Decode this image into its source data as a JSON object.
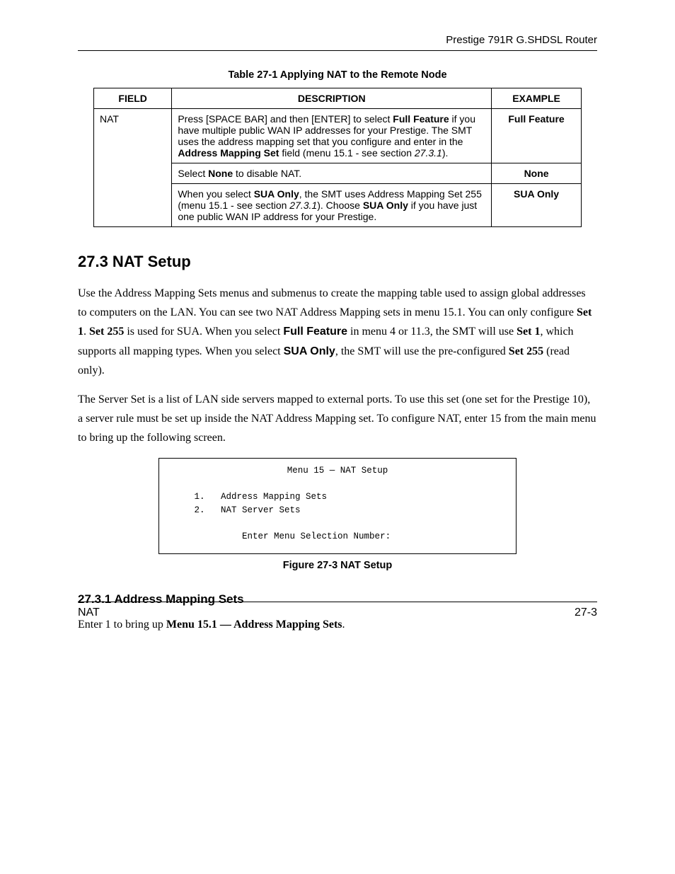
{
  "header": {
    "product": "Prestige 791R G.SHDSL Router"
  },
  "table": {
    "caption": "Table 27-1 Applying NAT to the Remote Node",
    "headers": {
      "field": "FIELD",
      "description": "DESCRIPTION",
      "example": "EXAMPLE"
    },
    "field_label": "NAT",
    "rows": [
      {
        "desc_parts": {
          "a": "Press [SPACE BAR] and then [ENTER] to select ",
          "b": "Full Feature",
          "c": " if you have multiple public WAN IP addresses for your Prestige.  The SMT uses the address mapping set that you configure and enter in the ",
          "d": "Address Mapping Set",
          "e": " field (menu 15.1 - see section ",
          "f": "27.3.1",
          "g": ")."
        },
        "example": "Full Feature"
      },
      {
        "desc_parts": {
          "a": "Select ",
          "b": "None",
          "c": " to disable NAT."
        },
        "example": "None"
      },
      {
        "desc_parts": {
          "a": "When you select ",
          "b": "SUA Only",
          "c": ", the SMT uses Address Mapping Set 255 (menu 15.1 - see section ",
          "d": "27.3.1",
          "e": "). Choose ",
          "f": "SUA Only",
          "g": " if you have just one public WAN IP address for your Prestige."
        },
        "example": "SUA Only"
      }
    ]
  },
  "section": {
    "heading": "27.3  NAT Setup",
    "para1": {
      "a": "Use the Address Mapping Sets menus and submenus to create the mapping table used to assign global addresses to computers on the LAN.  You can see two NAT Address Mapping sets in menu 15.1.  You can only configure ",
      "b": "Set 1",
      "c": ".  ",
      "d": "Set 255",
      "e": " is used for SUA.  When you select ",
      "f": "Full Feature",
      "g": " in menu 4 or 11.3, the SMT will use ",
      "h": "Set 1",
      "i": ", which supports all mapping types",
      "j": ". ",
      "k": "When you select ",
      "l": "SUA Only",
      "m": ", the SMT will use the pre-configured ",
      "n": "Set 255",
      "o": " (read only)."
    },
    "para2": "The Server Set is a list of LAN side servers mapped to external ports.  To use this set (one set for the Prestige 10), a server rule must be set up inside the NAT Address Mapping set. To configure NAT, enter 15 from the main menu to bring up the following screen."
  },
  "screen": {
    "title": "Menu 15 — NAT Setup",
    "line1": "1.   Address Mapping Sets",
    "line2": "2.   NAT Server Sets",
    "prompt": "Enter Menu Selection Number:"
  },
  "figure": {
    "caption": "Figure 27-3 NAT Setup"
  },
  "subsection": {
    "heading": "27.3.1 Address Mapping Sets",
    "para_parts": {
      "a": "Enter 1 to bring up ",
      "b": "Menu 15.1 — Address Mapping Sets",
      "c": "."
    }
  },
  "footer": {
    "left": "NAT",
    "right": "27-3"
  }
}
